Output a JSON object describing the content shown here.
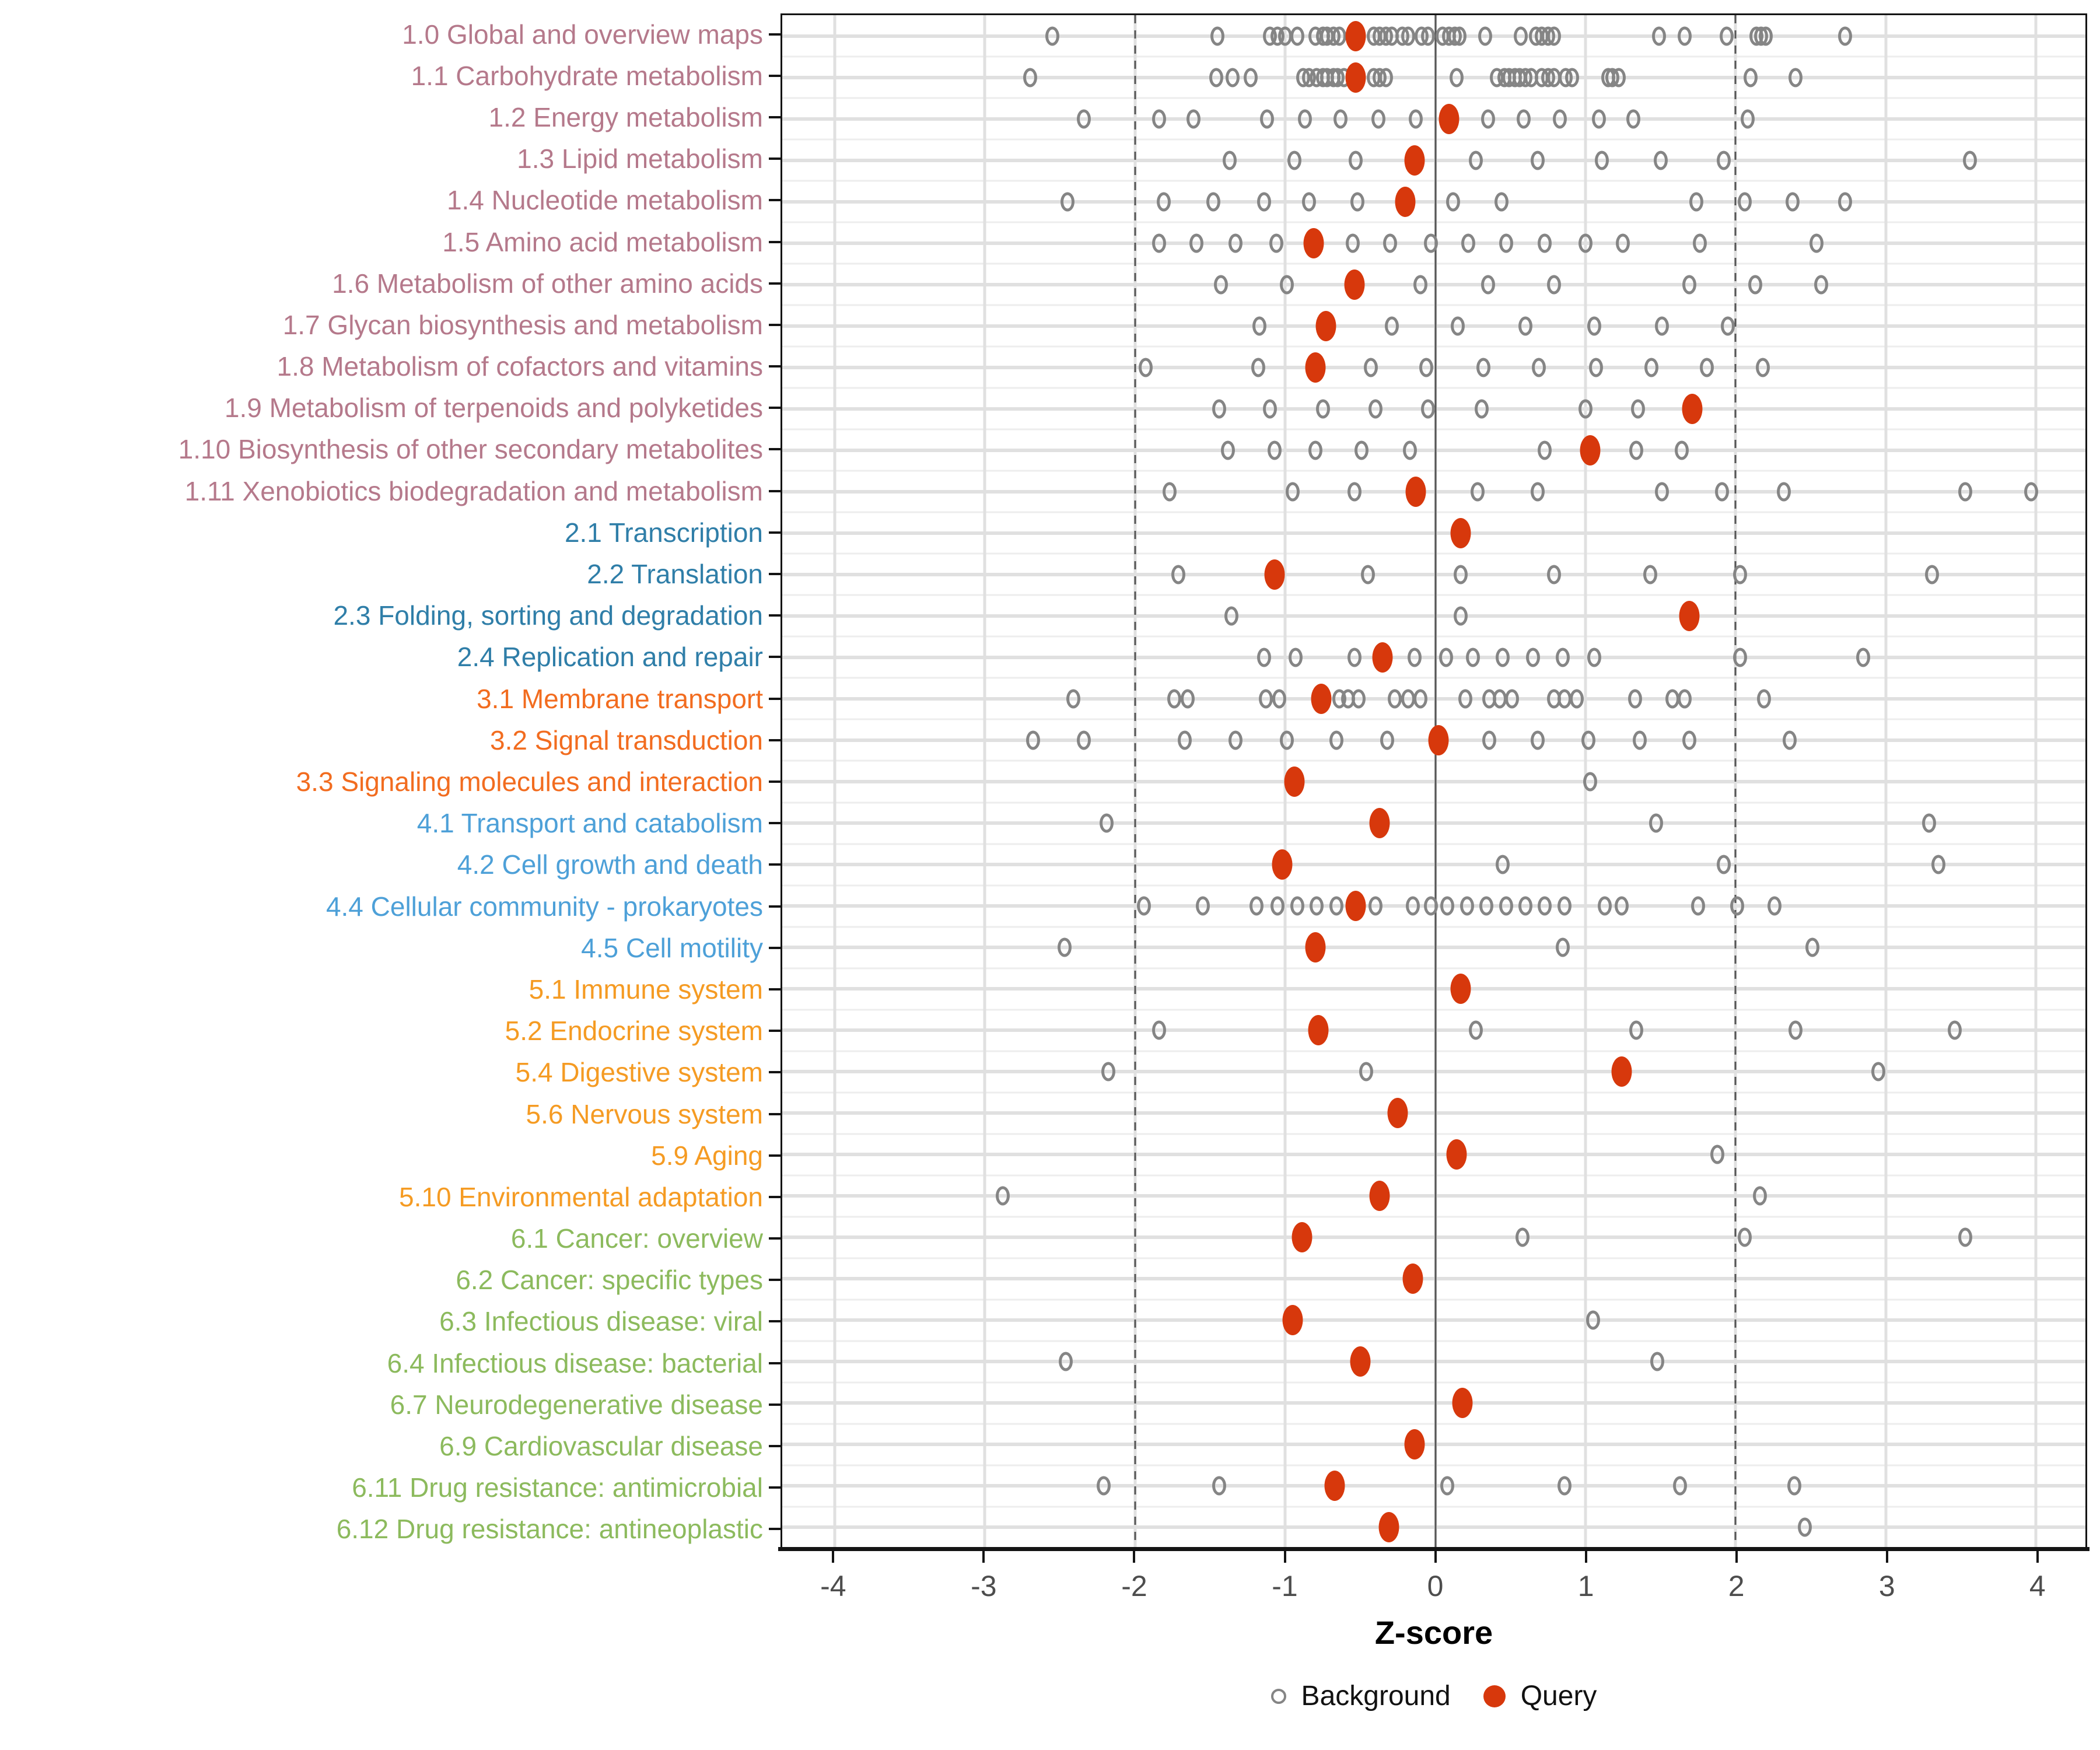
{
  "chart_data": {
    "type": "scatter",
    "title": "",
    "xlabel": "Z-score",
    "ylabel": "",
    "xlim": [
      -4.35,
      4.33
    ],
    "x_ticks": [
      -4,
      -3,
      -2,
      -1,
      0,
      1,
      2,
      3,
      4
    ],
    "grid": "on",
    "legend_position": "bottom",
    "reference_lines": {
      "solid_at": 0,
      "dashed_at": [
        -2,
        2
      ]
    },
    "colors": {
      "query": "#d7380c",
      "background_stroke": "#858585",
      "reference_line": "#555555",
      "axis_text": "#4d4d4d",
      "group_colors": {
        "1": "#b5798b",
        "2": "#2f7ea8",
        "3": "#f26c1f",
        "4": "#4da0d8",
        "5": "#f59b23",
        "6": "#8cba5d"
      }
    },
    "legend": [
      {
        "label": "Background",
        "marker": "open-circle"
      },
      {
        "label": "Query",
        "marker": "filled-circle"
      }
    ],
    "categories": [
      {
        "label": "1.0 Global and overview maps",
        "group": "1",
        "query": -0.53,
        "background": [
          -2.55,
          -1.45,
          -1.1,
          -1.05,
          -1.0,
          -0.92,
          -0.8,
          -0.75,
          -0.72,
          -0.68,
          -0.64,
          -0.41,
          -0.37,
          -0.33,
          -0.29,
          -0.22,
          -0.18,
          -0.09,
          -0.05,
          0.05,
          0.09,
          0.13,
          0.16,
          0.33,
          0.57,
          0.67,
          0.71,
          0.75,
          0.79,
          1.49,
          1.66,
          1.94,
          2.14,
          2.17,
          2.2,
          2.73
        ]
      },
      {
        "label": "1.1 Carbohydrate metabolism",
        "group": "1",
        "query": -0.53,
        "background": [
          -2.7,
          -1.46,
          -1.35,
          -1.23,
          -0.88,
          -0.84,
          -0.79,
          -0.75,
          -0.72,
          -0.68,
          -0.65,
          -0.61,
          -0.41,
          -0.37,
          -0.33,
          0.14,
          0.41,
          0.46,
          0.49,
          0.53,
          0.56,
          0.6,
          0.64,
          0.71,
          0.75,
          0.79,
          0.87,
          0.91,
          1.15,
          1.18,
          1.22,
          2.1,
          2.4
        ]
      },
      {
        "label": "1.2 Energy metabolism",
        "group": "1",
        "query": 0.09,
        "background": [
          -2.34,
          -1.84,
          -1.61,
          -1.12,
          -0.87,
          -0.63,
          -0.38,
          -0.13,
          0.35,
          0.59,
          0.83,
          1.09,
          1.32,
          2.08
        ]
      },
      {
        "label": "1.3 Lipid metabolism",
        "group": "1",
        "query": -0.14,
        "background": [
          -1.37,
          -0.94,
          -0.53,
          0.27,
          0.68,
          1.11,
          1.5,
          1.92,
          3.56
        ]
      },
      {
        "label": "1.4 Nucleotide metabolism",
        "group": "1",
        "query": -0.2,
        "background": [
          -2.45,
          -1.81,
          -1.48,
          -1.14,
          -0.84,
          -0.52,
          0.12,
          0.44,
          1.74,
          2.06,
          2.38,
          2.73
        ]
      },
      {
        "label": "1.5 Amino acid metabolism",
        "group": "1",
        "query": -0.81,
        "background": [
          -1.84,
          -1.59,
          -1.33,
          -1.06,
          -0.55,
          -0.3,
          -0.03,
          0.22,
          0.47,
          0.73,
          1.0,
          1.25,
          1.76,
          2.54
        ]
      },
      {
        "label": "1.6 Metabolism of other amino acids",
        "group": "1",
        "query": -0.54,
        "background": [
          -1.43,
          -0.99,
          -0.1,
          0.35,
          0.79,
          1.69,
          2.13,
          2.57
        ]
      },
      {
        "label": "1.7 Glycan biosynthesis and metabolism",
        "group": "1",
        "query": -0.73,
        "background": [
          -1.17,
          -0.29,
          0.15,
          0.6,
          1.06,
          1.51,
          1.95
        ]
      },
      {
        "label": "1.8 Metabolism of cofactors and vitamins",
        "group": "1",
        "query": -0.8,
        "background": [
          -1.93,
          -1.18,
          -0.43,
          -0.06,
          0.32,
          0.69,
          1.07,
          1.44,
          1.81,
          2.18
        ]
      },
      {
        "label": "1.9 Metabolism of terpenoids and polyketides",
        "group": "1",
        "query": 1.71,
        "background": [
          -1.44,
          -1.1,
          -0.75,
          -0.4,
          -0.05,
          0.31,
          1.0,
          1.35
        ]
      },
      {
        "label": "1.10 Biosynthesis of other secondary metabolites",
        "group": "1",
        "query": 1.03,
        "background": [
          -1.38,
          -1.07,
          -0.8,
          -0.49,
          -0.17,
          0.73,
          1.34,
          1.64
        ]
      },
      {
        "label": "1.11 Xenobiotics biodegradation and metabolism",
        "group": "1",
        "query": -0.13,
        "background": [
          -1.77,
          -0.95,
          -0.54,
          0.28,
          0.68,
          1.51,
          1.91,
          2.32,
          3.53,
          3.97
        ]
      },
      {
        "label": "2.1 Transcription",
        "group": "2",
        "query": 0.17,
        "background": []
      },
      {
        "label": "2.2 Translation",
        "group": "2",
        "query": -1.07,
        "background": [
          -1.71,
          -0.45,
          0.17,
          0.79,
          1.43,
          2.03,
          3.31
        ]
      },
      {
        "label": "2.3 Folding, sorting and degradation",
        "group": "2",
        "query": 1.69,
        "background": [
          -1.36,
          0.17
        ]
      },
      {
        "label": "2.4 Replication and repair",
        "group": "2",
        "query": -0.35,
        "background": [
          -1.14,
          -0.93,
          -0.54,
          -0.14,
          0.07,
          0.25,
          0.45,
          0.65,
          0.85,
          1.06,
          2.03,
          2.85
        ]
      },
      {
        "label": "3.1 Membrane transport",
        "group": "3",
        "query": -0.76,
        "background": [
          -2.41,
          -1.74,
          -1.65,
          -1.13,
          -1.04,
          -0.64,
          -0.58,
          -0.51,
          -0.27,
          -0.18,
          -0.1,
          0.2,
          0.36,
          0.43,
          0.51,
          0.79,
          0.86,
          0.94,
          1.33,
          1.58,
          1.66,
          2.19
        ]
      },
      {
        "label": "3.2 Signal transduction",
        "group": "3",
        "query": 0.02,
        "background": [
          -2.68,
          -2.34,
          -1.67,
          -1.33,
          -0.99,
          -0.66,
          -0.32,
          0.36,
          0.68,
          1.02,
          1.36,
          1.69,
          2.36
        ]
      },
      {
        "label": "3.3 Signaling molecules and interaction",
        "group": "3",
        "query": -0.94,
        "background": [
          1.03
        ]
      },
      {
        "label": "4.1 Transport and catabolism",
        "group": "4",
        "query": -0.37,
        "background": [
          -2.19,
          1.47,
          3.29
        ]
      },
      {
        "label": "4.2 Cell growth and death",
        "group": "4",
        "query": -1.02,
        "background": [
          0.45,
          1.92,
          3.35
        ]
      },
      {
        "label": "4.4 Cellular community - prokaryotes",
        "group": "4",
        "query": -0.53,
        "background": [
          -1.94,
          -1.55,
          -1.19,
          -1.05,
          -0.92,
          -0.79,
          -0.66,
          -0.4,
          -0.15,
          -0.03,
          0.08,
          0.21,
          0.34,
          0.47,
          0.6,
          0.73,
          0.86,
          1.13,
          1.24,
          1.75,
          2.01,
          2.26
        ]
      },
      {
        "label": "4.5 Cell motility",
        "group": "4",
        "query": -0.8,
        "background": [
          -2.47,
          0.85,
          2.51
        ]
      },
      {
        "label": "5.1 Immune system",
        "group": "5",
        "query": 0.17,
        "background": []
      },
      {
        "label": "5.2 Endocrine system",
        "group": "5",
        "query": -0.78,
        "background": [
          -1.84,
          0.27,
          1.34,
          2.4,
          3.46
        ]
      },
      {
        "label": "5.4 Digestive system",
        "group": "5",
        "query": 1.24,
        "background": [
          -2.18,
          -0.46,
          2.95
        ]
      },
      {
        "label": "5.6 Nervous system",
        "group": "5",
        "query": -0.25,
        "background": []
      },
      {
        "label": "5.9 Aging",
        "group": "5",
        "query": 0.14,
        "background": [
          1.88
        ]
      },
      {
        "label": "5.10 Environmental adaptation",
        "group": "5",
        "query": -0.37,
        "background": [
          -2.88,
          2.16
        ]
      },
      {
        "label": "6.1 Cancer: overview",
        "group": "6",
        "query": -0.89,
        "background": [
          0.58,
          2.06,
          3.53
        ]
      },
      {
        "label": "6.2 Cancer: specific types",
        "group": "6",
        "query": -0.15,
        "background": []
      },
      {
        "label": "6.3 Infectious disease: viral",
        "group": "6",
        "query": -0.95,
        "background": [
          1.05
        ]
      },
      {
        "label": "6.4 Infectious disease: bacterial",
        "group": "6",
        "query": -0.5,
        "background": [
          -2.46,
          1.48
        ]
      },
      {
        "label": "6.7 Neurodegenerative disease",
        "group": "6",
        "query": 0.18,
        "background": []
      },
      {
        "label": "6.9 Cardiovascular disease",
        "group": "6",
        "query": -0.14,
        "background": []
      },
      {
        "label": "6.11 Drug resistance: antimicrobial",
        "group": "6",
        "query": -0.67,
        "background": [
          -2.21,
          -1.44,
          0.08,
          0.86,
          1.63,
          2.39
        ]
      },
      {
        "label": "6.12 Drug resistance: antineoplastic",
        "group": "6",
        "query": -0.31,
        "background": [
          2.46
        ]
      }
    ]
  }
}
